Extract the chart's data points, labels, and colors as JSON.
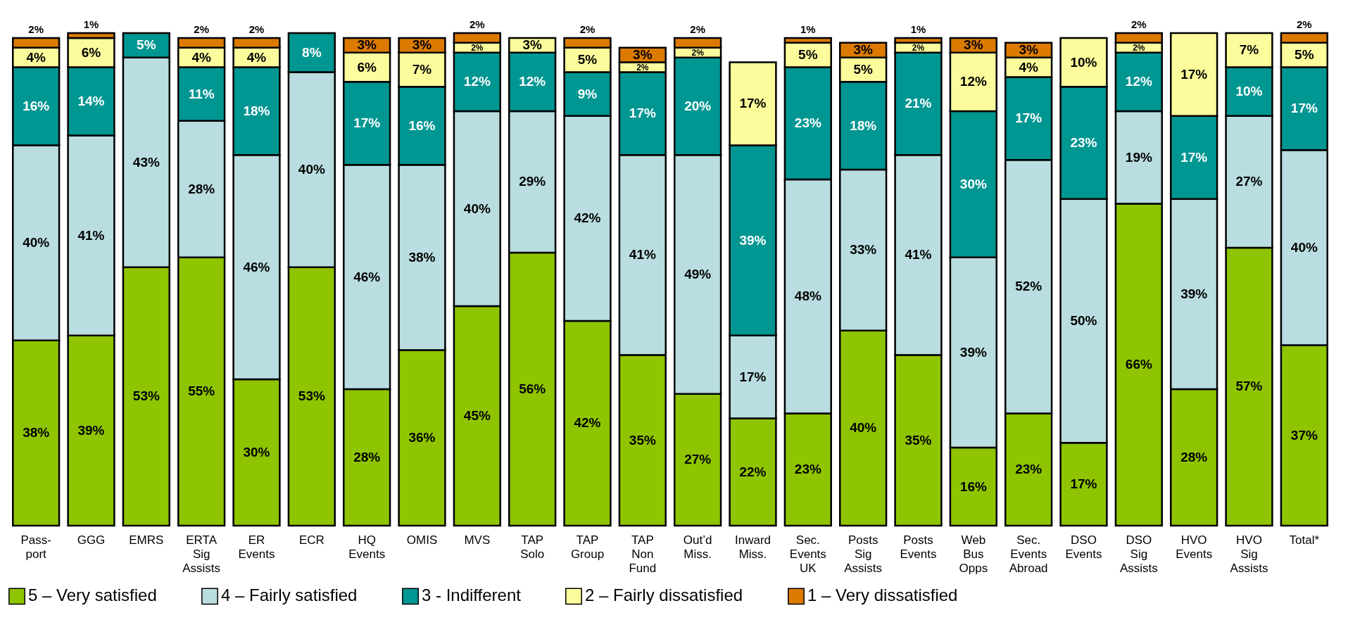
{
  "chart_data": {
    "type": "bar",
    "stacked": true,
    "legend": "bottom",
    "categories": [
      "Pass-port",
      "GGG",
      "EMRS",
      "ERTA Sig Assists",
      "ER Events",
      "ECR",
      "HQ Events",
      "OMIS",
      "MVS",
      "TAP Solo",
      "TAP Group",
      "TAP Non Fund",
      "Out’d Miss.",
      "Inward Miss.",
      "Sec. Events UK",
      "Posts Sig Assists",
      "Posts Events",
      "Web Bus Opps",
      "Sec. Events Abroad",
      "DSO Events",
      "DSO Sig Assists",
      "HVO Events",
      "HVO Sig Assists",
      "Total*"
    ],
    "series": [
      {
        "name": "5 – Very satisfied",
        "color": "#8fc400",
        "values": [
          38,
          39,
          53,
          55,
          30,
          53,
          28,
          36,
          45,
          56,
          42,
          35,
          27,
          22,
          23,
          40,
          35,
          16,
          23,
          17,
          66,
          28,
          57,
          37
        ],
        "value_labels": [
          "38%",
          "39%",
          "53%",
          "55%",
          "30%",
          "53%",
          "28%",
          "36%",
          "45%",
          "56%",
          "42%",
          "35%",
          "27%",
          "22%",
          "23%",
          "40%",
          "35%",
          "16%",
          "23%",
          "17%",
          "66%",
          "28%",
          "57%",
          "37%"
        ]
      },
      {
        "name": "4 – Fairly satisfied",
        "color": "#b9dde0",
        "values": [
          40,
          41,
          43,
          28,
          46,
          40,
          46,
          38,
          40,
          29,
          42,
          41,
          49,
          17,
          48,
          33,
          41,
          39,
          52,
          50,
          19,
          39,
          27,
          40
        ],
        "value_labels": [
          "40%",
          "41%",
          "43%",
          "28%",
          "46%",
          "40%",
          "46%",
          "38%",
          "40%",
          "29%",
          "42%",
          "41%",
          "49%",
          "17%",
          "48%",
          "33%",
          "41%",
          "39%",
          "52%",
          "50%",
          "19%",
          "39%",
          "27%",
          "40%"
        ]
      },
      {
        "name": "3 - Indifferent",
        "color": "#009692",
        "values": [
          16,
          14,
          5,
          11,
          18,
          8,
          17,
          16,
          12,
          12,
          9,
          17,
          20,
          39,
          23,
          18,
          21,
          30,
          17,
          23,
          12,
          17,
          10,
          17
        ],
        "value_labels": [
          "16%",
          "14%",
          "5%",
          "11%",
          "18%",
          "8%",
          "17%",
          "16%",
          "12%",
          "12%",
          "9%",
          "17%",
          "20%",
          "39%",
          "23%",
          "18%",
          "21%",
          "30%",
          "17%",
          "23%",
          "12%",
          "17%",
          "10%",
          "17%"
        ]
      },
      {
        "name": "2 – Fairly dissatisfied",
        "color": "#fcfc9c",
        "values": [
          4,
          6,
          null,
          4,
          4,
          null,
          6,
          7,
          2,
          3,
          5,
          2,
          2,
          17,
          5,
          5,
          2,
          12,
          4,
          10,
          2,
          17,
          7,
          5
        ],
        "value_labels": [
          "4%",
          "6%",
          null,
          "4%",
          "4%",
          null,
          "6%",
          "7%",
          "2%",
          "3%",
          "5%",
          "2%",
          "2%",
          "17%",
          "5%",
          "5%",
          "2%",
          "12%",
          "4%",
          "10%",
          "2%",
          "17%",
          "7%",
          "5%"
        ]
      },
      {
        "name": "1 – Very dissatisfied",
        "color": "#dc7a00",
        "values": [
          2,
          1,
          null,
          2,
          2,
          null,
          3,
          3,
          2,
          null,
          2,
          3,
          2,
          null,
          1,
          3,
          1,
          3,
          3,
          null,
          2,
          null,
          null,
          2
        ],
        "value_labels": [
          "2%",
          "1%",
          null,
          "2%",
          "2%",
          null,
          "3%",
          "3%",
          "2%",
          null,
          "2%",
          "3%",
          "2%",
          null,
          "1%",
          "3%",
          "1%",
          "3%",
          "3%",
          null,
          "2%",
          null,
          null,
          "2%"
        ]
      }
    ]
  }
}
